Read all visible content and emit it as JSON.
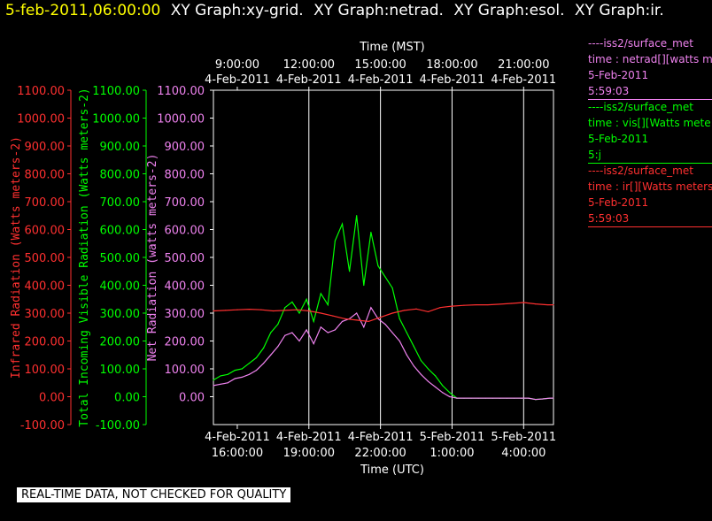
{
  "header": {
    "timestamp": "5-feb-2011,06:00:00",
    "graph_titles": [
      "XY Graph:xy-grid.",
      "XY Graph:netrad.",
      "XY Graph:esol.",
      "XY Graph:ir."
    ]
  },
  "colors": {
    "ir": "#ff3030",
    "vis": "#00ff00",
    "net": "#ee82ee",
    "axis": "#ffffff",
    "grid": "#ffffff",
    "timestamp": "#ffff00"
  },
  "legend": [
    {
      "color": "#ee82ee",
      "lines": [
        "----iss2/surface_met",
        "time : netrad[][watts me",
        "5-Feb-2011",
        "5:59:03"
      ]
    },
    {
      "color": "#00ff00",
      "lines": [
        "----iss2/surface_met",
        "time : vis[][Watts mete",
        "5-Feb-2011",
        "5:j"
      ]
    },
    {
      "color": "#ff3030",
      "lines": [
        "----iss2/surface_met",
        "time : ir[][Watts meters",
        "5-Feb-2011",
        "5:59:03"
      ]
    }
  ],
  "footer": "REAL-TIME DATA, NOT CHECKED FOR QUALITY",
  "chart_data": {
    "type": "line",
    "xlabel_bottom": "Time (UTC)",
    "xlabel_top": "Time (MST)",
    "xlim_utc_hours": [
      15.0,
      29.25
    ],
    "bottom_ticks": [
      {
        "hour": 16,
        "date": "4-Feb-2011",
        "time": "16:00:00"
      },
      {
        "hour": 19,
        "date": "4-Feb-2011",
        "time": "19:00:00"
      },
      {
        "hour": 22,
        "date": "4-Feb-2011",
        "time": "22:00:00"
      },
      {
        "hour": 25,
        "date": "5-Feb-2011",
        "time": "1:00:00"
      },
      {
        "hour": 28,
        "date": "5-Feb-2011",
        "time": "4:00:00"
      }
    ],
    "top_ticks": [
      {
        "hour": 16,
        "time": "9:00:00",
        "date": "4-Feb-2011"
      },
      {
        "hour": 19,
        "time": "12:00:00",
        "date": "4-Feb-2011"
      },
      {
        "hour": 22,
        "time": "15:00:00",
        "date": "4-Feb-2011"
      },
      {
        "hour": 25,
        "time": "18:00:00",
        "date": "4-Feb-2011"
      },
      {
        "hour": 28,
        "time": "21:00:00",
        "date": "4-Feb-2011"
      }
    ],
    "grid_vertical_hours": [
      19,
      22,
      25,
      28
    ],
    "ylim": [
      -100,
      1100
    ],
    "y_ticks": [
      "1100.00",
      "1000.00",
      "900.00",
      "800.00",
      "700.00",
      "600.00",
      "500.00",
      "400.00",
      "300.00",
      "200.00",
      "100.00",
      "0.00",
      "-100.00"
    ],
    "y_ticks_net": [
      "1100.00",
      "1000.00",
      "900.00",
      "800.00",
      "700.00",
      "600.00",
      "500.00",
      "400.00",
      "300.00",
      "200.00",
      "100.00",
      "0.00"
    ],
    "axes": [
      {
        "key": "ir",
        "label": "Infrared Radiation (Watts meters-2)"
      },
      {
        "key": "vis",
        "label": "Total Incoming Visible Radiation (Watts meters-2)"
      },
      {
        "key": "net",
        "label": "Net Radiation (watts meters-2)"
      }
    ],
    "series": [
      {
        "key": "vis",
        "unit": "W m-2",
        "x": [
          15.0,
          15.3,
          15.6,
          15.9,
          16.2,
          16.5,
          16.8,
          17.1,
          17.4,
          17.7,
          18.0,
          18.3,
          18.6,
          18.9,
          19.2,
          19.5,
          19.8,
          20.1,
          20.4,
          20.7,
          21.0,
          21.3,
          21.6,
          21.9,
          22.2,
          22.5,
          22.8,
          23.1,
          23.4,
          23.7,
          24.0,
          24.3,
          24.6,
          24.9,
          25.2,
          25.5,
          25.8,
          26.1,
          26.4,
          26.7,
          27.0,
          27.3,
          27.6,
          27.9,
          28.2,
          28.5,
          28.8,
          29.1,
          29.25
        ],
        "y": [
          60,
          75,
          80,
          95,
          100,
          120,
          140,
          175,
          230,
          260,
          320,
          340,
          300,
          350,
          270,
          370,
          330,
          560,
          620,
          450,
          650,
          400,
          590,
          470,
          430,
          390,
          280,
          230,
          180,
          130,
          100,
          75,
          40,
          15,
          -5,
          -5,
          -5,
          -5,
          -5,
          -5,
          -5,
          -5,
          -5,
          -5,
          -5,
          -10,
          -8,
          -5,
          -5
        ]
      },
      {
        "key": "net",
        "unit": "W m-2",
        "x": [
          15.0,
          15.3,
          15.6,
          15.9,
          16.2,
          16.5,
          16.8,
          17.1,
          17.4,
          17.7,
          18.0,
          18.3,
          18.6,
          18.9,
          19.2,
          19.5,
          19.8,
          20.1,
          20.4,
          20.7,
          21.0,
          21.3,
          21.6,
          21.9,
          22.2,
          22.5,
          22.8,
          23.1,
          23.4,
          23.7,
          24.0,
          24.3,
          24.6,
          24.9,
          25.2,
          25.5,
          25.8,
          26.1,
          26.4,
          26.7,
          27.0,
          27.3,
          27.6,
          27.9,
          28.2,
          28.5,
          28.8,
          29.1,
          29.25
        ],
        "y": [
          40,
          45,
          50,
          65,
          70,
          80,
          95,
          120,
          150,
          180,
          220,
          230,
          200,
          240,
          190,
          250,
          230,
          240,
          270,
          280,
          300,
          250,
          320,
          280,
          260,
          230,
          200,
          150,
          110,
          80,
          55,
          35,
          15,
          0,
          -5,
          -5,
          -5,
          -5,
          -5,
          -5,
          -5,
          -5,
          -5,
          -5,
          -5,
          -10,
          -8,
          -5,
          -5
        ]
      },
      {
        "key": "ir",
        "unit": "W m-2",
        "x": [
          15.0,
          15.5,
          16.0,
          16.5,
          17.0,
          17.5,
          18.0,
          18.5,
          19.0,
          19.5,
          20.0,
          20.5,
          21.0,
          21.5,
          22.0,
          22.5,
          23.0,
          23.5,
          24.0,
          24.5,
          25.0,
          25.5,
          26.0,
          26.5,
          27.0,
          27.5,
          28.0,
          28.5,
          29.0,
          29.25
        ],
        "y": [
          308,
          310,
          312,
          314,
          312,
          308,
          310,
          312,
          308,
          300,
          290,
          280,
          275,
          270,
          285,
          300,
          310,
          315,
          305,
          320,
          325,
          328,
          330,
          330,
          332,
          335,
          338,
          333,
          330,
          330
        ]
      }
    ]
  }
}
